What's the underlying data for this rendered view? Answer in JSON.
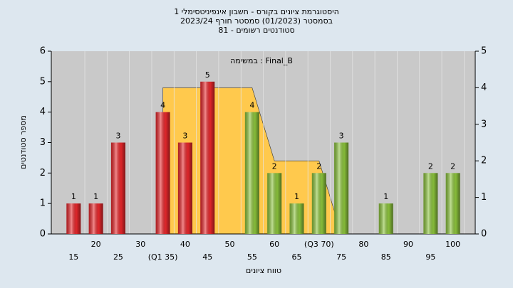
{
  "chart_data": {
    "type": "bar",
    "title_lines": [
      "היסטוגרמת ציונים בקורס - חשבון אינפיניטסימלי 1",
      "בסמסטר  (01/2023)  סמסטר חורף 2023/24",
      "סטודנטים רשומים - 81"
    ],
    "annotation": "במשימה : Final_B",
    "y_label": "מספר סטודנטים",
    "x_label": "טווח ציונים",
    "x": [
      15,
      20,
      25,
      30,
      35,
      40,
      45,
      50,
      55,
      60,
      65,
      70,
      75,
      80,
      85,
      90,
      95,
      100
    ],
    "values": [
      1,
      1,
      3,
      0,
      4,
      3,
      5,
      0,
      4,
      2,
      1,
      2,
      3,
      0,
      1,
      0,
      2,
      2
    ],
    "colors": [
      "#e8282c",
      "#e8282c",
      "#e8282c",
      "#e8282c",
      "#e8282c",
      "#e8282c",
      "#e8282c",
      "#e8282c",
      "#8cc43c",
      "#8cc43c",
      "#8cc43c",
      "#8cc43c",
      "#8cc43c",
      "#8cc43c",
      "#8cc43c",
      "#8cc43c",
      "#8cc43c",
      "#8cc43c"
    ],
    "area": {
      "x": [
        35,
        55,
        60,
        70,
        75
      ],
      "values": [
        4,
        4,
        2,
        2,
        0
      ],
      "color": "#ffc94d",
      "axis": "y2"
    },
    "xlim": [
      10,
      105
    ],
    "xticks": [
      15,
      20,
      25,
      30,
      {
        "value": 35,
        "label": "(Q1 35)"
      },
      40,
      45,
      50,
      55,
      60,
      65,
      {
        "value": 70,
        "label": "(Q3 70)"
      },
      75,
      80,
      85,
      90,
      95,
      100
    ],
    "ylim": [
      0,
      6
    ],
    "yticks": [
      0,
      1,
      2,
      3,
      4,
      5,
      6
    ],
    "y2lim": [
      0,
      5
    ],
    "y2ticks": [
      0,
      1,
      2,
      3,
      4,
      5
    ]
  }
}
